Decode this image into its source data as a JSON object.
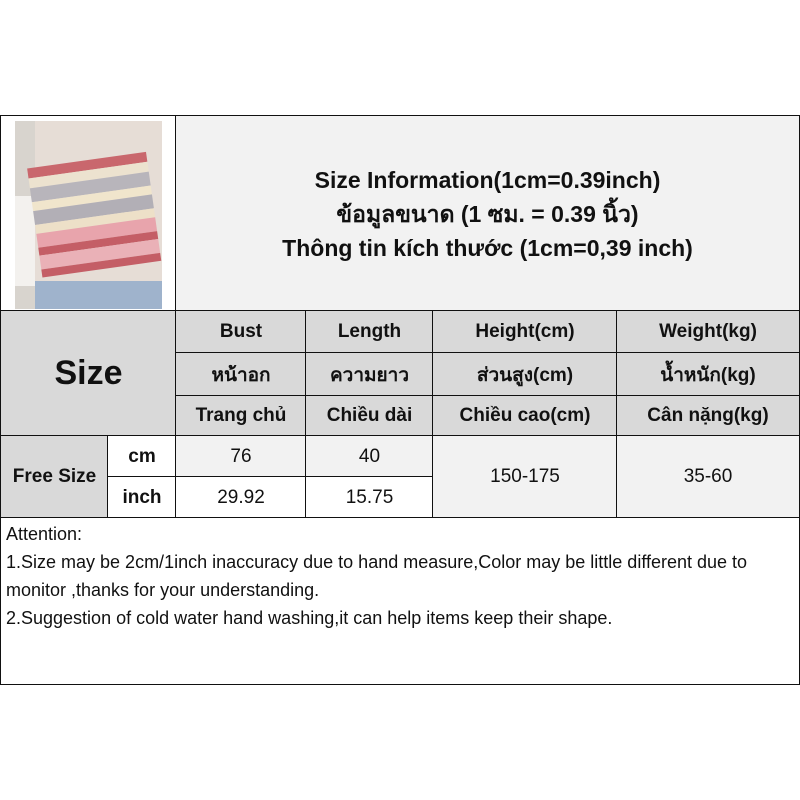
{
  "title": {
    "line1": "Size Information(1cm=0.39inch)",
    "line2": "ข้อมูลขนาด (1 ซม. = 0.39 นิ้ว)",
    "line3": "Thông tin kích thước (1cm=0,39 inch)"
  },
  "size_label": "Size",
  "columns": [
    {
      "en": "Bust",
      "th": "หน้าอก",
      "vi": "Trang chủ"
    },
    {
      "en": "Length",
      "th": "ความยาว",
      "vi": "Chiều dài"
    },
    {
      "en": "Height(cm)",
      "th": "ส่วนสูง(cm)",
      "vi": "Chiều cao(cm)"
    },
    {
      "en": "Weight(kg)",
      "th": "น้ำหนัก(kg)",
      "vi": "Cân nặng(kg)"
    }
  ],
  "row": {
    "label": "Free Size",
    "cm_label": "cm",
    "inch_label": "inch",
    "bust_cm": "76",
    "length_cm": "40",
    "bust_inch": "29.92",
    "length_inch": "15.75",
    "height": "150-175",
    "weight": "35-60"
  },
  "attention": {
    "heading": "Attention:",
    "line1": "1.Size may be 2cm/1inch inaccuracy due to hand measure,Color may be little different due to monitor ,thanks for your understanding.",
    "line2": "2.Suggestion of cold water hand washing,it can help items keep their shape."
  }
}
